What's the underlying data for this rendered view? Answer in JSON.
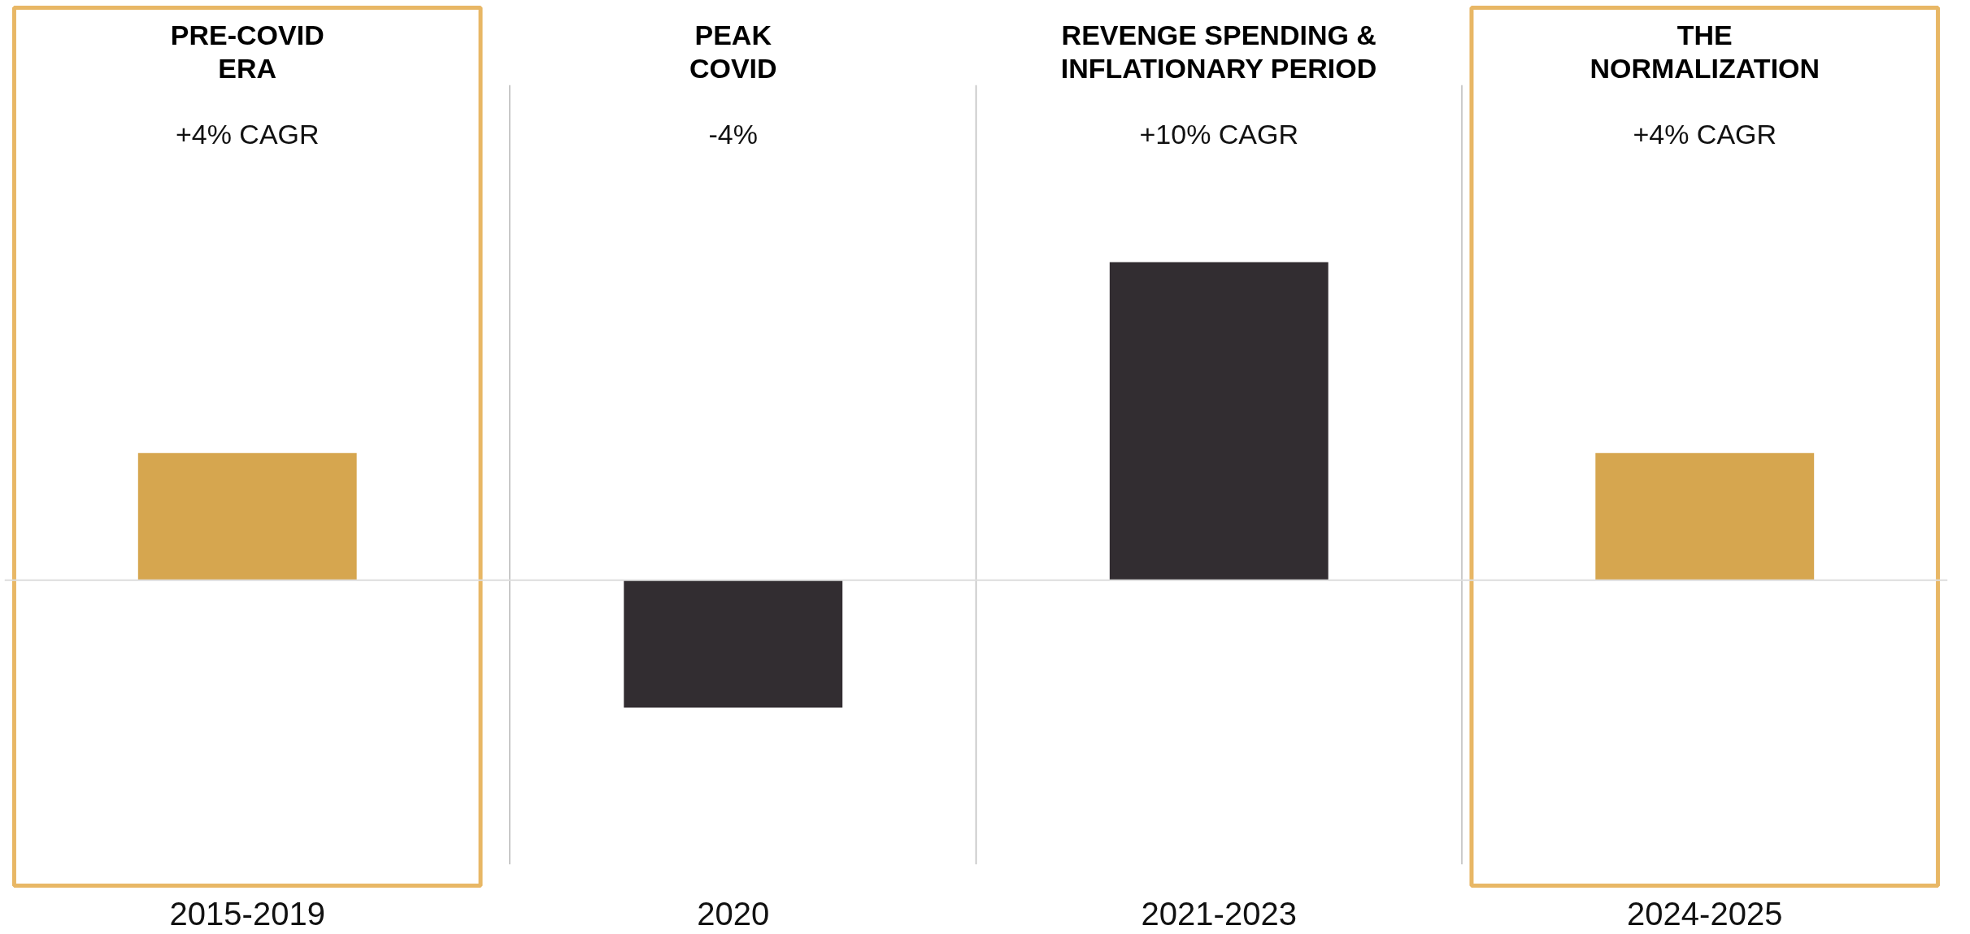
{
  "chart_data": {
    "type": "bar",
    "categories": [
      "2015-2019",
      "2020",
      "2021-2023",
      "2024-2025"
    ],
    "values": [
      4,
      -4,
      10,
      4
    ],
    "colors": [
      "#d6a64f",
      "#322d31",
      "#322d31",
      "#d6a64f"
    ],
    "value_labels": [
      "+4% CAGR",
      "-4%",
      "+10% CAGR",
      "+4% CAGR"
    ],
    "annotations": [
      "PRE-COVID\nERA",
      "PEAK\nCOVID",
      "REVENGE SPENDING &\nINFLATIONARY PERIOD",
      "THE\nNORMALIZATION"
    ],
    "ref_lines": [
      {
        "axis": "y",
        "value": 0,
        "color": "#dddddd"
      }
    ],
    "grid": false
  }
}
